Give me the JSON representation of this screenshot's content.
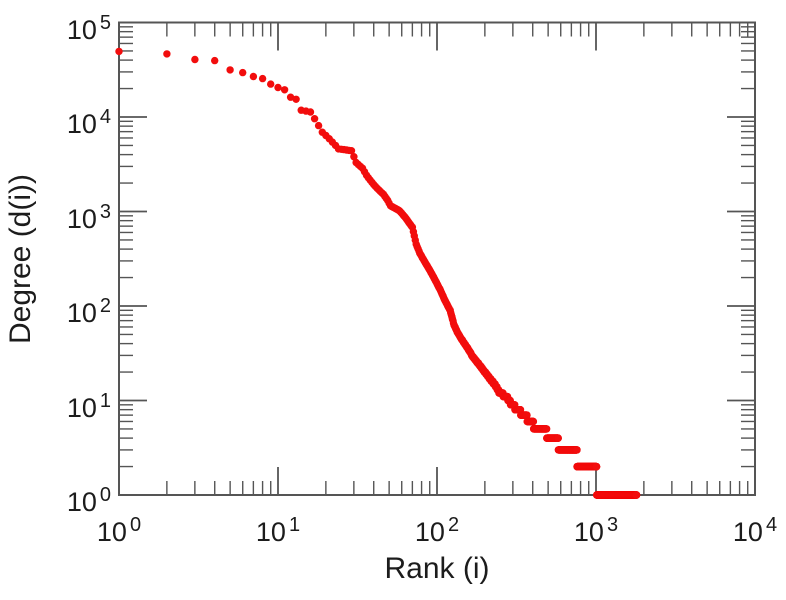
{
  "chart_data": {
    "type": "scatter",
    "title": "",
    "xlabel": "Rank (i)",
    "ylabel": "Degree (d(i))",
    "x_scale": "log",
    "y_scale": "log",
    "xlim": [
      1,
      10000
    ],
    "ylim": [
      1,
      100000
    ],
    "x_tick_exponents": [
      0,
      1,
      2,
      3,
      4
    ],
    "y_tick_exponents": [
      0,
      1,
      2,
      3,
      4,
      5
    ],
    "tick_label_base": "10",
    "grid": false,
    "legend": "none",
    "axis_color": "#555555",
    "label_color": "#1c1c1c",
    "marker": {
      "shape": "circle",
      "color": "#f20d0d",
      "radius_px": 3.7
    },
    "rank_range": [
      1,
      1800
    ],
    "series": [
      {
        "name": "degree-vs-rank",
        "interpolation": "one dot per integer rank between rank_range, degree interpolated log-log between anchor points and rounded to nearest integer",
        "anchors_rank_degree": [
          [
            1,
            49500
          ],
          [
            2,
            46500
          ],
          [
            3,
            40600
          ],
          [
            4,
            39500
          ],
          [
            5,
            31500
          ],
          [
            6,
            29500
          ],
          [
            7,
            26800
          ],
          [
            8,
            25500
          ],
          [
            9,
            22300
          ],
          [
            10,
            20500
          ],
          [
            11,
            19400
          ],
          [
            12,
            16200
          ],
          [
            13,
            15400
          ],
          [
            14,
            11800
          ],
          [
            16,
            11300
          ],
          [
            17,
            9600
          ],
          [
            19,
            6900
          ],
          [
            21,
            5900
          ],
          [
            23,
            5000
          ],
          [
            24,
            4600
          ],
          [
            29,
            4400
          ],
          [
            31,
            3300
          ],
          [
            34,
            2870
          ],
          [
            36,
            2420
          ],
          [
            39,
            2030
          ],
          [
            42,
            1760
          ],
          [
            46,
            1520
          ],
          [
            49,
            1310
          ],
          [
            51,
            1150
          ],
          [
            53,
            1110
          ],
          [
            58,
            1020
          ],
          [
            63,
            870
          ],
          [
            70,
            680
          ],
          [
            74,
            450
          ],
          [
            78,
            362
          ],
          [
            84,
            290
          ],
          [
            90,
            240
          ],
          [
            97,
            190
          ],
          [
            105,
            147
          ],
          [
            112,
            115
          ],
          [
            121,
            90
          ],
          [
            128,
            63
          ],
          [
            135,
            52
          ],
          [
            146,
            42
          ],
          [
            157,
            35
          ],
          [
            168,
            29
          ],
          [
            184,
            24
          ],
          [
            200,
            20
          ],
          [
            215,
            17
          ],
          [
            230,
            15
          ],
          [
            248,
            12
          ],
          [
            274,
            11
          ],
          [
            296,
            9
          ],
          [
            323,
            8
          ],
          [
            350,
            7
          ],
          [
            390,
            6
          ],
          [
            420,
            5
          ],
          [
            488,
            5
          ],
          [
            492,
            4
          ],
          [
            578,
            4
          ],
          [
            582,
            3
          ],
          [
            755,
            3
          ],
          [
            765,
            2
          ],
          [
            1005,
            2
          ],
          [
            1015,
            1
          ],
          [
            1800,
            1
          ]
        ]
      }
    ]
  }
}
